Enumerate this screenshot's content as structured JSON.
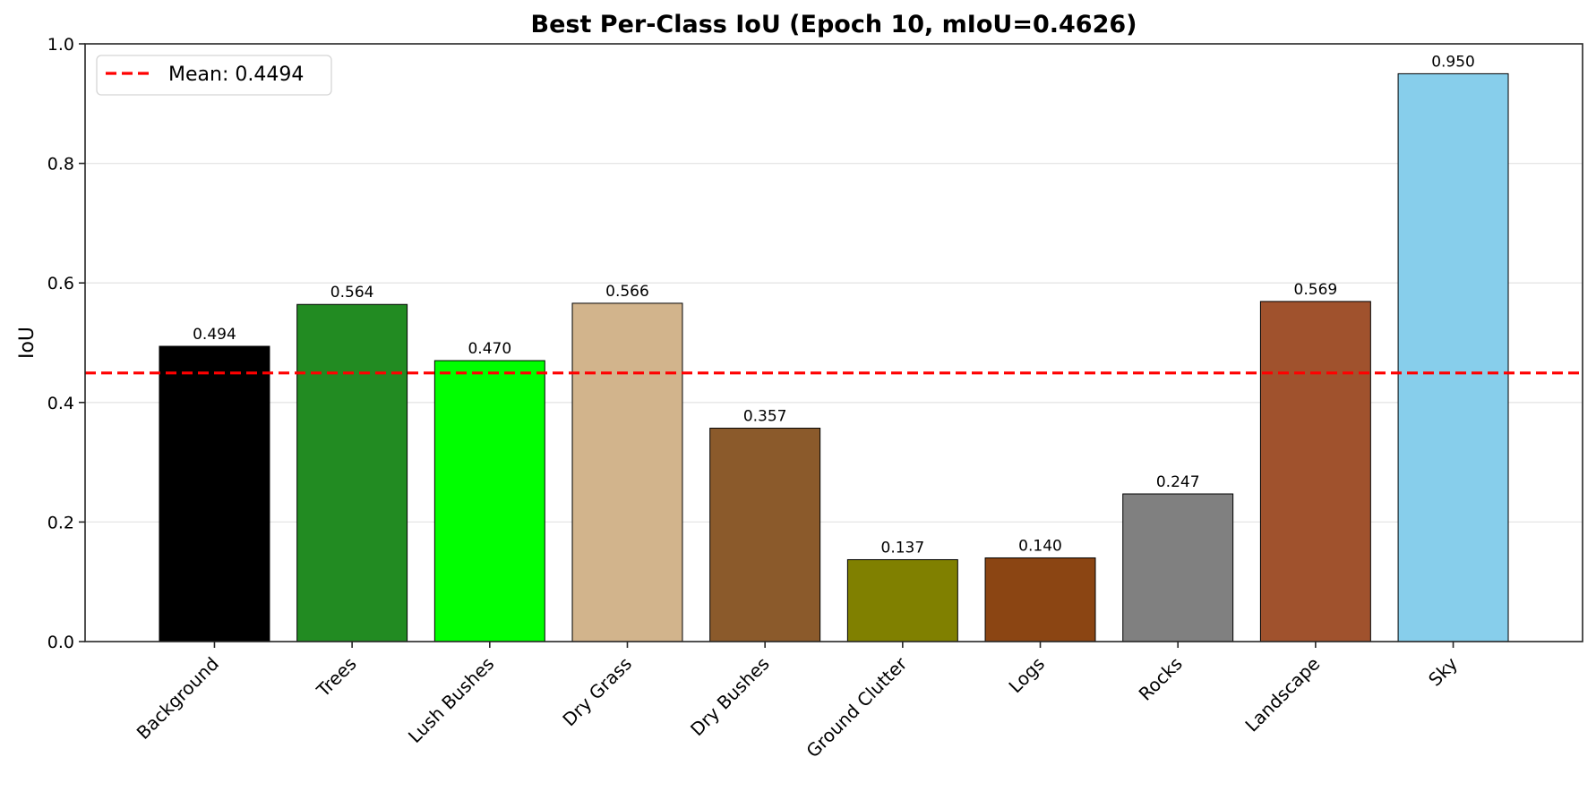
{
  "chart_data": {
    "type": "bar",
    "title": "Best Per-Class IoU (Epoch 10, mIoU=0.4626)",
    "xlabel": "",
    "ylabel": "IoU",
    "ylim": [
      0,
      1.0
    ],
    "yticks": [
      "0.0",
      "0.2",
      "0.4",
      "0.6",
      "0.8",
      "1.0"
    ],
    "grid": "y",
    "legend_position": "upper left",
    "categories": [
      "Background",
      "Trees",
      "Lush Bushes",
      "Dry Grass",
      "Dry Bushes",
      "Ground Clutter",
      "Logs",
      "Rocks",
      "Landscape",
      "Sky"
    ],
    "values": [
      0.494,
      0.564,
      0.47,
      0.566,
      0.357,
      0.137,
      0.14,
      0.247,
      0.569,
      0.95
    ],
    "value_labels": [
      "0.494",
      "0.564",
      "0.470",
      "0.566",
      "0.357",
      "0.137",
      "0.140",
      "0.247",
      "0.569",
      "0.950"
    ],
    "bar_colors": [
      "#000000",
      "#228b22",
      "#00ff00",
      "#d2b48c",
      "#8b5a2b",
      "#808000",
      "#8b4513",
      "#808080",
      "#a0522d",
      "#87ceeb"
    ],
    "reference_line": {
      "label": "Mean: 0.4494",
      "value": 0.4494,
      "color": "#ff0000",
      "style": "dashed"
    }
  }
}
